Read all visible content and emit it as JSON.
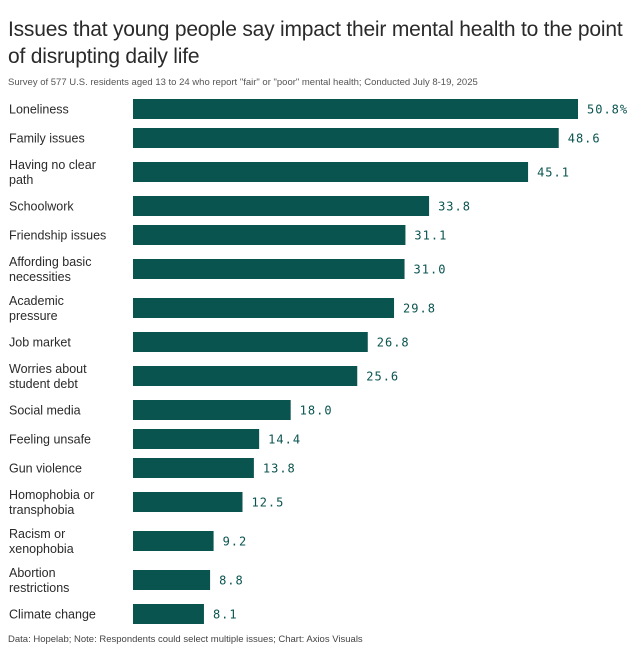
{
  "header": {
    "title": "Issues that young people say impact their mental health to the point of disrupting daily life",
    "subtitle": "Survey of 577 U.S. residents aged 13 to 24 who report \"fair\" or \"poor\" mental health; Conducted July 8-19, 2025"
  },
  "footer": {
    "text": "Data: Hopelab; Note: Respondents could select multiple issues; Chart: Axios Visuals"
  },
  "colors": {
    "bar": "#0a5450",
    "value_label": "#0a5450"
  },
  "chart_data": {
    "type": "bar",
    "orientation": "horizontal",
    "title": "Issues that young people say impact their mental health to the point of disrupting daily life",
    "subtitle": "Survey of 577 U.S. residents aged 13 to 24 who report \"fair\" or \"poor\" mental health; Conducted July 8-19, 2025",
    "xlabel": "",
    "ylabel": "",
    "unit": "%",
    "xlim": [
      0,
      50.8
    ],
    "grid": false,
    "legend": "none",
    "categories": [
      [
        "Loneliness"
      ],
      [
        "Family issues"
      ],
      [
        "Having no clear",
        "path"
      ],
      [
        "Schoolwork"
      ],
      [
        "Friendship issues"
      ],
      [
        "Affording basic",
        "necessities"
      ],
      [
        "Academic",
        "pressure"
      ],
      [
        "Job market"
      ],
      [
        "Worries about",
        "student debt"
      ],
      [
        "Social media"
      ],
      [
        "Feeling unsafe"
      ],
      [
        "Gun violence"
      ],
      [
        "Homophobia or",
        "transphobia"
      ],
      [
        "Racism or",
        "xenophobia"
      ],
      [
        "Abortion",
        "restrictions"
      ],
      [
        "Climate change"
      ]
    ],
    "values": [
      50.8,
      48.6,
      45.1,
      33.8,
      31.1,
      31.0,
      29.8,
      26.8,
      25.6,
      18.0,
      14.4,
      13.8,
      12.5,
      9.2,
      8.8,
      8.1
    ],
    "value_labels": [
      "50.8%",
      "48.6",
      "45.1",
      "33.8",
      "31.1",
      "31.0",
      "29.8",
      "26.8",
      "25.6",
      "18.0",
      "14.4",
      "13.8",
      "12.5",
      "9.2",
      "8.8",
      "8.1"
    ]
  }
}
